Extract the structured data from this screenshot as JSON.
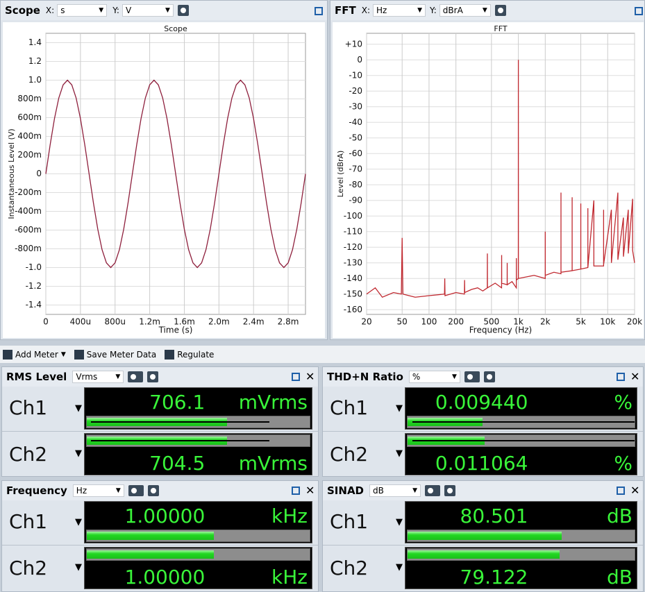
{
  "scope_header": {
    "title": "Scope",
    "x_label": "X:",
    "x_unit": "s",
    "y_label": "Y:",
    "y_unit": "V"
  },
  "fft_header": {
    "title": "FFT",
    "x_label": "X:",
    "x_unit": "Hz",
    "y_label": "Y:",
    "y_unit": "dBrA"
  },
  "chart_data": [
    {
      "type": "line",
      "title": "Scope",
      "x_label": "Time (s)",
      "y_label": "Instantaneous Level (V)",
      "color": "#8e1f3c",
      "xlim": [
        0,
        0.003
      ],
      "ylim": [
        -1.5,
        1.5
      ],
      "grid": true,
      "xticks": [
        0,
        {
          "value": 0.0004,
          "label": "400u"
        },
        {
          "value": 0.0008,
          "label": "800u"
        },
        {
          "value": 0.0012,
          "label": "1.2m"
        },
        {
          "value": 0.0016,
          "label": "1.6m"
        },
        {
          "value": 0.002,
          "label": "2.0m"
        },
        {
          "value": 0.0024,
          "label": "2.4m"
        },
        {
          "value": 0.0028,
          "label": "2.8m"
        }
      ],
      "yticks": [
        1.4,
        1.2,
        {
          "value": 1,
          "label": "1.0"
        },
        {
          "value": 0.8,
          "label": "800m"
        },
        {
          "value": 0.6,
          "label": "600m"
        },
        {
          "value": 0.4,
          "label": "400m"
        },
        {
          "value": 0.2,
          "label": "200m"
        },
        0,
        {
          "value": -0.2,
          "label": "-200m"
        },
        {
          "value": -0.4,
          "label": "-400m"
        },
        {
          "value": -0.6,
          "label": "-600m"
        },
        {
          "value": -0.8,
          "label": "-800m"
        },
        {
          "value": -1,
          "label": "-1.0"
        },
        -1.2,
        -1.4
      ],
      "x": [
        0,
        5e-05,
        0.0001,
        0.00015,
        0.0002,
        0.00025,
        0.0003,
        0.00035,
        0.0004,
        0.00045,
        0.0005,
        0.00055,
        0.0006,
        0.00065,
        0.0007,
        0.00075,
        0.0008,
        0.00085,
        0.0009,
        0.00095,
        0.001,
        0.00105,
        0.0011,
        0.00115,
        0.0012,
        0.00125,
        0.0013,
        0.00135,
        0.0014,
        0.00145,
        0.0015,
        0.00155,
        0.0016,
        0.00165,
        0.0017,
        0.00175,
        0.0018,
        0.00185,
        0.0019,
        0.00195,
        0.002,
        0.00205,
        0.0021,
        0.00215,
        0.0022,
        0.00225,
        0.0023,
        0.00235,
        0.0024,
        0.00245,
        0.0025,
        0.00255,
        0.0026,
        0.00265,
        0.0027,
        0.00275,
        0.0028,
        0.00285,
        0.0029,
        0.00295,
        0.003
      ],
      "values": [
        0,
        0.31,
        0.59,
        0.81,
        0.95,
        1,
        0.95,
        0.81,
        0.59,
        0.31,
        0,
        -0.31,
        -0.59,
        -0.81,
        -0.95,
        -1,
        -0.95,
        -0.81,
        -0.59,
        -0.31,
        0,
        0.31,
        0.59,
        0.81,
        0.95,
        1,
        0.95,
        0.81,
        0.59,
        0.31,
        0,
        -0.31,
        -0.59,
        -0.81,
        -0.95,
        -1,
        -0.95,
        -0.81,
        -0.59,
        -0.31,
        0,
        0.31,
        0.59,
        0.81,
        0.95,
        1,
        0.95,
        0.81,
        0.59,
        0.31,
        0,
        -0.31,
        -0.59,
        -0.81,
        -0.95,
        -1,
        -0.95,
        -0.81,
        -0.59,
        -0.31,
        0
      ]
    },
    {
      "type": "line",
      "title": "FFT",
      "x_label": "Frequency (Hz)",
      "y_label": "Level (dBrA)",
      "color": "#c0282f",
      "xlog": true,
      "xlim": [
        20,
        20000
      ],
      "ylim": [
        -163,
        17
      ],
      "grid": true,
      "xticks": [
        20,
        50,
        100,
        200,
        500,
        {
          "value": 1000,
          "label": "1k"
        },
        {
          "value": 2000,
          "label": "2k"
        },
        {
          "value": 5000,
          "label": "5k"
        },
        {
          "value": 10000,
          "label": "10k"
        },
        {
          "value": 20000,
          "label": "20k"
        }
      ],
      "yticks": [
        {
          "value": 10,
          "label": "+10"
        },
        0,
        -10,
        -20,
        -30,
        -40,
        -50,
        -60,
        -70,
        -80,
        -90,
        -100,
        -110,
        -120,
        -130,
        -140,
        -150,
        -160
      ],
      "x": [
        20,
        25,
        30,
        40,
        49,
        50,
        51,
        70,
        100,
        149,
        150,
        151,
        200,
        249,
        250,
        251,
        300,
        350,
        400,
        449,
        450,
        451,
        550,
        649,
        650,
        651,
        749,
        750,
        751,
        850,
        949,
        950,
        951,
        999,
        1000,
        1001,
        1500,
        1999,
        2000,
        2001,
        2500,
        2999,
        3000,
        3001,
        3999,
        4000,
        4001,
        4999,
        5000,
        5001,
        5999,
        6000,
        6001,
        7000,
        7001,
        8999,
        9000,
        9001,
        11000,
        11001,
        13000,
        13001,
        15000,
        15001,
        17000,
        17001,
        19000,
        19001,
        20000
      ],
      "values": [
        -150,
        -146,
        -152,
        -149,
        -150,
        -114,
        -150,
        -152,
        -151,
        -150,
        -140,
        -151,
        -149,
        -150,
        -141,
        -149,
        -147,
        -146,
        -148,
        -146,
        -124,
        -146,
        -143,
        -146,
        -125,
        -143,
        -144,
        -130,
        -144,
        -142,
        -146,
        -127,
        -141,
        -140,
        0,
        -140,
        -138,
        -140,
        -110,
        -138,
        -136,
        -137,
        -85,
        -136,
        -135,
        -88,
        -135,
        -134,
        -92,
        -134,
        -133,
        -95,
        -133,
        -90,
        -132,
        -132,
        -96,
        -131,
        -96,
        -130,
        -85,
        -128,
        -101,
        -126,
        -96,
        -124,
        -89,
        -122,
        -130
      ]
    }
  ],
  "toolbar": {
    "add_meter": "Add Meter",
    "save_meter_data": "Save Meter Data",
    "regulate": "Regulate"
  },
  "meters": [
    {
      "title": "RMS Level",
      "unit_select": "Vrms",
      "channels": [
        {
          "name": "Ch1",
          "value": "706.1",
          "unit": "mVrms",
          "fill": 63,
          "hold": 82
        },
        {
          "name": "Ch2",
          "value": "704.5",
          "unit": "mVrms",
          "fill": 63,
          "hold": 82
        }
      ]
    },
    {
      "title": "THD+N Ratio",
      "unit_select": "%",
      "channels": [
        {
          "name": "Ch1",
          "value": "0.009440",
          "unit": "%",
          "fill": 33,
          "hold": 100
        },
        {
          "name": "Ch2",
          "value": "0.011064",
          "unit": "%",
          "fill": 34,
          "hold": 100
        }
      ]
    },
    {
      "title": "Frequency",
      "unit_select": "Hz",
      "channels": [
        {
          "name": "Ch1",
          "value": "1.00000",
          "unit": "kHz",
          "fill": 57
        },
        {
          "name": "Ch2",
          "value": "1.00000",
          "unit": "kHz",
          "fill": 57
        }
      ]
    },
    {
      "title": "SINAD",
      "unit_select": "dB",
      "channels": [
        {
          "name": "Ch1",
          "value": "80.501",
          "unit": "dB",
          "fill": 68
        },
        {
          "name": "Ch2",
          "value": "79.122",
          "unit": "dB",
          "fill": 67
        }
      ]
    }
  ]
}
